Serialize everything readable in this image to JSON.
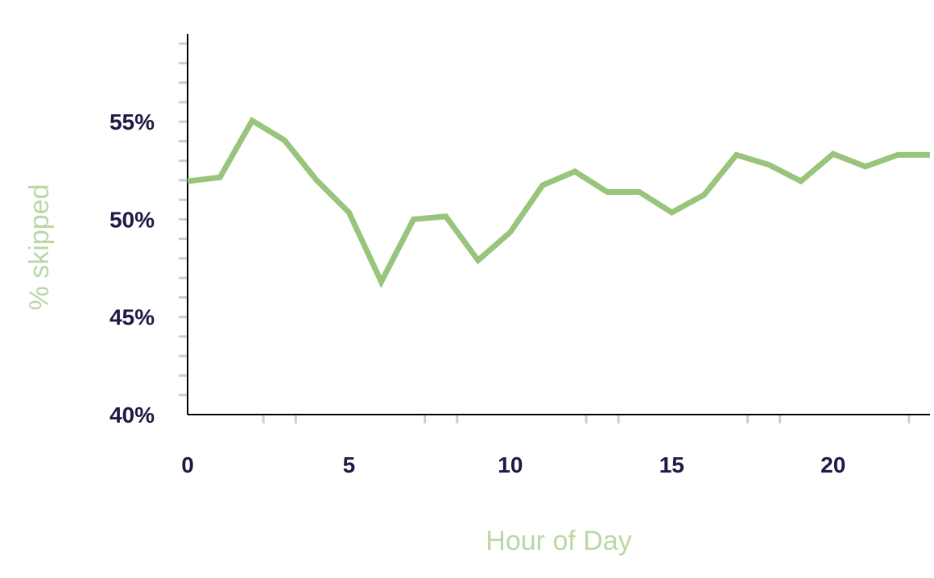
{
  "chart_data": {
    "type": "line",
    "title": "",
    "xlabel": "Hour of Day",
    "ylabel": "% skipped",
    "x": [
      0,
      1,
      2,
      3,
      4,
      5,
      6,
      7,
      8,
      9,
      10,
      11,
      12,
      13,
      14,
      15,
      16,
      17,
      18,
      19,
      20,
      21,
      22,
      23
    ],
    "series": [
      {
        "values": [
          51.95,
          52.15,
          55.05,
          54.05,
          52.0,
          50.35,
          46.8,
          50.0,
          50.15,
          47.9,
          49.35,
          51.75,
          52.45,
          51.4,
          51.4,
          50.35,
          51.25,
          53.3,
          52.8,
          51.95,
          53.35,
          52.7,
          53.3,
          53.3
        ]
      }
    ],
    "xlim": [
      0,
      23
    ],
    "ylim": [
      40,
      59.5
    ],
    "x_ticks": [
      0,
      5,
      10,
      15,
      20
    ],
    "x_tick_labels": [
      "0",
      "5",
      "10",
      "15",
      "20"
    ],
    "y_ticks": [
      40,
      45,
      50,
      55
    ],
    "y_tick_labels": [
      "40%",
      "45%",
      "50%",
      "55%"
    ],
    "grid": false,
    "colors": {
      "line": "#98c47c",
      "axis_title": "#b9d8a6",
      "tick_label": "#1e1a45",
      "axis": "#000000",
      "minor_tick": "#ccccdd"
    }
  }
}
